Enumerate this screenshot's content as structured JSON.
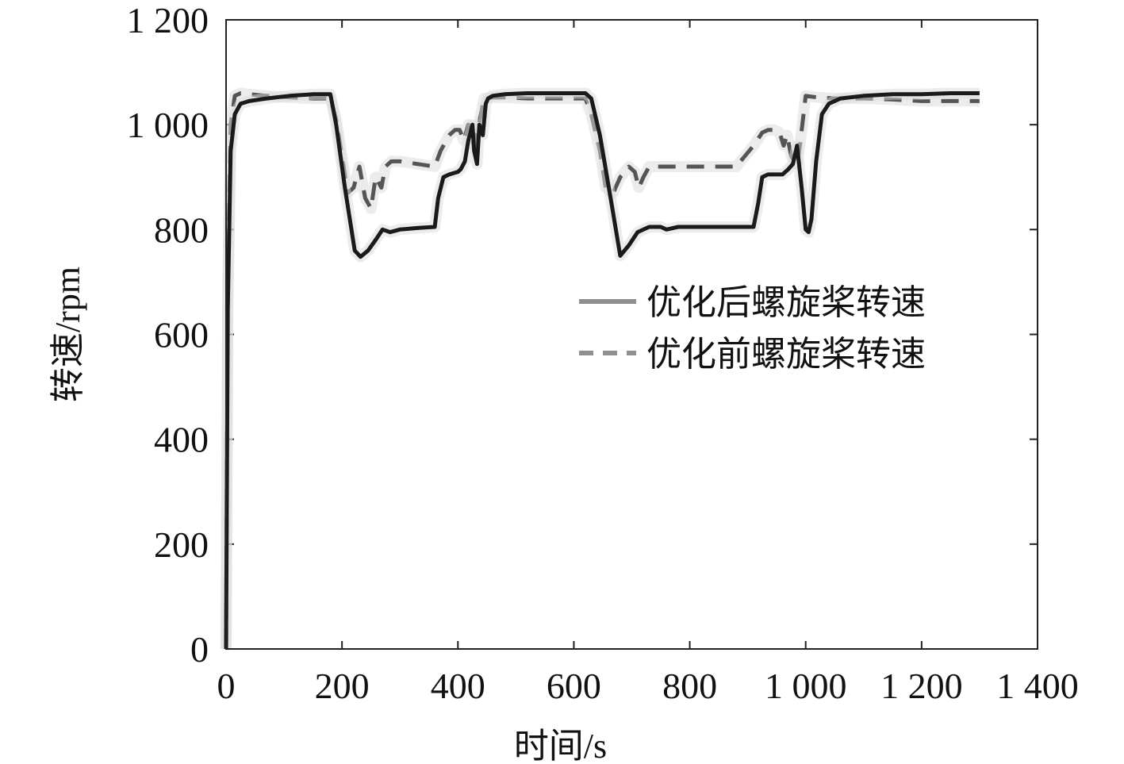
{
  "chart_data": {
    "type": "line",
    "xlabel": "时间/s",
    "ylabel": "转速/rpm",
    "xlim": [
      0,
      1400
    ],
    "ylim": [
      0,
      1200
    ],
    "x_ticks": [
      0,
      200,
      400,
      600,
      800,
      1000,
      1200,
      1400
    ],
    "x_tick_labels": [
      "0",
      "200",
      "400",
      "600",
      "800",
      "1 000",
      "1 200",
      "1 400"
    ],
    "y_ticks": [
      0,
      200,
      400,
      600,
      800,
      1000,
      1200
    ],
    "y_tick_labels": [
      "0",
      "200",
      "400",
      "600",
      "800",
      "1 000",
      "1 200"
    ],
    "legend_position": "right",
    "series": [
      {
        "name": "优化后螺旋桨转速",
        "style": "solid",
        "color": "#1a1a1a",
        "x": [
          0,
          3,
          8,
          15,
          25,
          40,
          70,
          110,
          150,
          180,
          190,
          205,
          222,
          232,
          245,
          258,
          270,
          283,
          300,
          330,
          360,
          366,
          375,
          385,
          400,
          405,
          412,
          418,
          425,
          428,
          433,
          437,
          443,
          448,
          452,
          460,
          480,
          520,
          570,
          620,
          630,
          645,
          665,
          680,
          695,
          710,
          730,
          750,
          760,
          780,
          820,
          870,
          910,
          918,
          925,
          935,
          960,
          970,
          978,
          985,
          993,
          1000,
          1005,
          1010,
          1018,
          1028,
          1040,
          1060,
          1100,
          1150,
          1200,
          1250,
          1300
        ],
        "y": [
          0,
          650,
          950,
          1020,
          1040,
          1045,
          1050,
          1055,
          1058,
          1058,
          1000,
          880,
          760,
          748,
          760,
          780,
          800,
          795,
          800,
          803,
          805,
          860,
          900,
          905,
          910,
          915,
          930,
          970,
          1000,
          950,
          925,
          1000,
          980,
          1040,
          1050,
          1055,
          1058,
          1060,
          1060,
          1060,
          1050,
          980,
          850,
          750,
          770,
          795,
          805,
          805,
          800,
          805,
          805,
          805,
          805,
          850,
          900,
          905,
          905,
          915,
          925,
          960,
          880,
          800,
          795,
          820,
          930,
          1020,
          1040,
          1050,
          1055,
          1058,
          1058,
          1060,
          1060
        ]
      },
      {
        "name": "优化前螺旋桨转速",
        "style": "dashed",
        "color": "#555555",
        "x": [
          0,
          3,
          8,
          15,
          25,
          40,
          70,
          110,
          150,
          180,
          190,
          200,
          210,
          220,
          230,
          240,
          250,
          258,
          268,
          275,
          285,
          300,
          330,
          360,
          370,
          385,
          395,
          403,
          410,
          418,
          428,
          436,
          445,
          460,
          480,
          520,
          570,
          620,
          630,
          645,
          655,
          668,
          680,
          695,
          705,
          712,
          720,
          730,
          760,
          800,
          840,
          880,
          895,
          910,
          925,
          935,
          945,
          955,
          962,
          968,
          975,
          981,
          985,
          990,
          1000,
          1020,
          1050,
          1100,
          1150,
          1200,
          1250,
          1300
        ],
        "y": [
          0,
          700,
          1000,
          1055,
          1060,
          1058,
          1055,
          1052,
          1050,
          1050,
          1010,
          940,
          870,
          880,
          920,
          860,
          840,
          900,
          880,
          920,
          930,
          930,
          925,
          920,
          950,
          980,
          990,
          990,
          970,
          1000,
          960,
          1000,
          1050,
          1052,
          1052,
          1050,
          1050,
          1050,
          1020,
          950,
          880,
          870,
          900,
          920,
          910,
          880,
          900,
          920,
          920,
          920,
          920,
          920,
          940,
          960,
          985,
          990,
          990,
          985,
          960,
          980,
          940,
          930,
          925,
          960,
          1055,
          1052,
          1050,
          1050,
          1048,
          1045,
          1045,
          1045
        ]
      }
    ]
  }
}
